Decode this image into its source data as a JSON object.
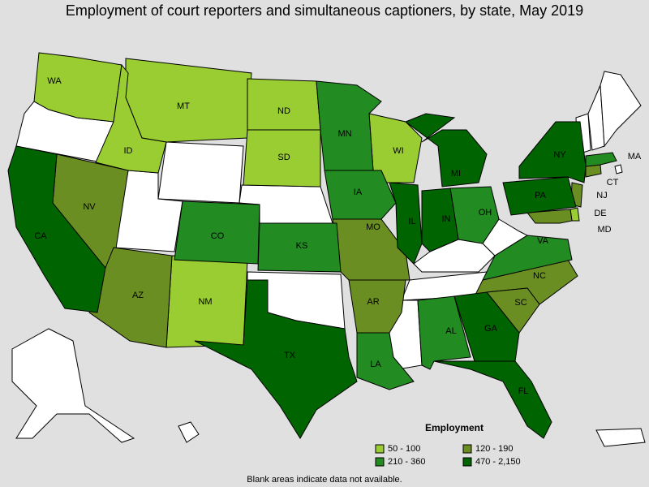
{
  "title": "Employment of court reporters and simultaneous captioners, by state, May 2019",
  "legend": {
    "title": "Employment",
    "items": [
      {
        "label": "50 - 100",
        "color": "#9acd32",
        "states": [
          "WA",
          "MT",
          "ID",
          "ND",
          "SD",
          "WI",
          "NM",
          "DE"
        ]
      },
      {
        "label": "120 - 190",
        "color": "#6b8e23",
        "states": [
          "NV",
          "AZ",
          "MO",
          "AR",
          "NC",
          "SC",
          "NJ",
          "CT",
          "MD"
        ]
      },
      {
        "label": "210 - 360",
        "color": "#228b22",
        "states": [
          "CO",
          "KS",
          "MN",
          "IA",
          "OH",
          "VA",
          "AL",
          "LA",
          "MA"
        ]
      },
      {
        "label": "470 - 2,150",
        "color": "#006400",
        "states": [
          "CA",
          "TX",
          "IL",
          "IN",
          "MI",
          "NY",
          "PA",
          "GA",
          "FL"
        ]
      }
    ]
  },
  "note": "Blank areas indicate data not available."
}
